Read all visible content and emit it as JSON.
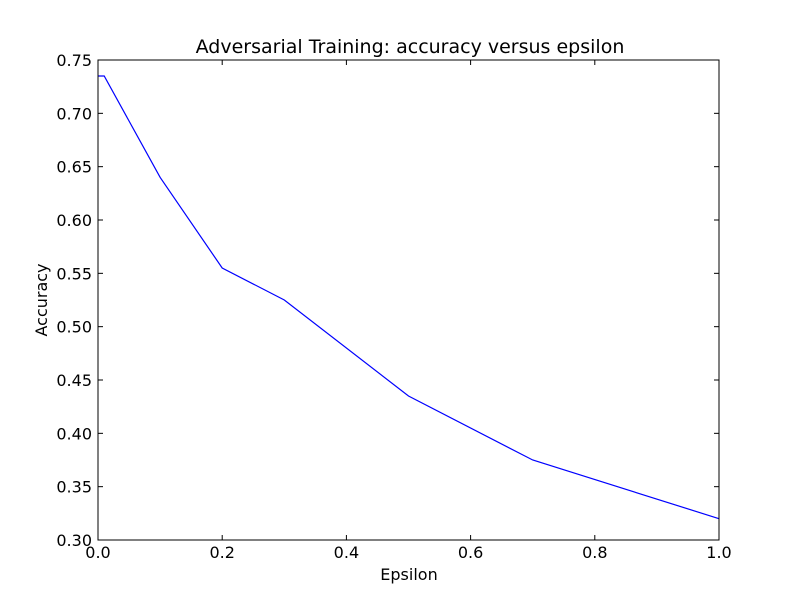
{
  "chart_data": {
    "type": "line",
    "title": "Adversarial Training: accuracy versus epsilon",
    "xlabel": "Epsilon",
    "ylabel": "Accuracy",
    "xlim": [
      0.0,
      1.0
    ],
    "ylim": [
      0.3,
      0.75
    ],
    "grid": false,
    "x_ticks": [
      "0.0",
      "0.2",
      "0.4",
      "0.6",
      "0.8",
      "1.0"
    ],
    "y_ticks": [
      "0.30",
      "0.35",
      "0.40",
      "0.45",
      "0.50",
      "0.55",
      "0.60",
      "0.65",
      "0.70",
      "0.75"
    ],
    "series": [
      {
        "color": "#0000ff",
        "x": [
          0.0,
          0.01,
          0.1,
          0.2,
          0.3,
          0.5,
          0.7,
          1.0
        ],
        "y": [
          0.735,
          0.735,
          0.64,
          0.555,
          0.525,
          0.435,
          0.375,
          0.32
        ]
      }
    ]
  }
}
